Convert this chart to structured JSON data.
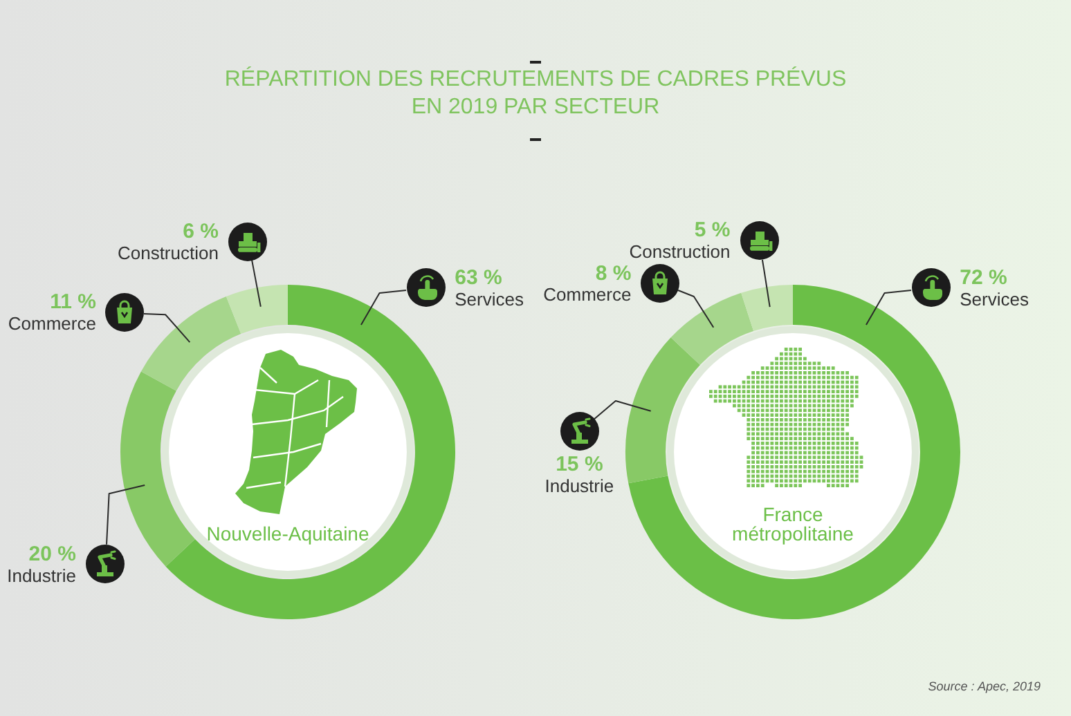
{
  "chart_data": [
    {
      "type": "donut",
      "title": "RÉPARTITION DES RECRUTEMENTS DE CADRES PRÉVUS\nEN 2019 PAR SECTEUR",
      "categories": [
        "Services",
        "Industrie",
        "Commerce",
        "Construction"
      ],
      "values": [
        63,
        20,
        11,
        6
      ],
      "value_labels": [
        "63 %",
        "20 %",
        "11 %",
        "6 %"
      ],
      "colors": [
        "#6bbf47",
        "#88c966",
        "#a6d68c",
        "#c5e4b1"
      ],
      "annotations": [
        "Nouvelle-Aquitaine"
      ]
    },
    {
      "type": "donut",
      "categories": [
        "Services",
        "Industrie",
        "Commerce",
        "Construction"
      ],
      "values": [
        72,
        15,
        8,
        5
      ],
      "value_labels": [
        "72 %",
        "15 %",
        "8 %",
        "5 %"
      ],
      "colors": [
        "#6bbf47",
        "#88c966",
        "#a6d68c",
        "#c5e4b1"
      ],
      "annotations": [
        "France métropolitaine",
        "Source : Apec, 2019"
      ]
    }
  ]
}
